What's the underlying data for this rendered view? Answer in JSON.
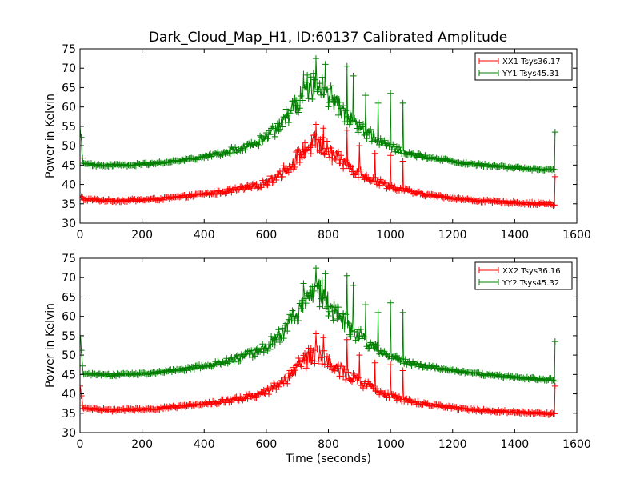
{
  "figure": {
    "title": "Dark_Cloud_Map_H1, ID:60137 Calibrated Amplitude"
  },
  "chart_data": [
    {
      "type": "line",
      "title": "Dark_Cloud_Map_H1, ID:60137 Calibrated Amplitude",
      "xlabel": "",
      "ylabel": "Power in Kelvin",
      "xlim": [
        0,
        1600
      ],
      "ylim": [
        30,
        75
      ],
      "xticks": [
        0,
        200,
        400,
        600,
        800,
        1000,
        1200,
        1400,
        1600
      ],
      "yticks": [
        30,
        35,
        40,
        45,
        50,
        55,
        60,
        65,
        70,
        75
      ],
      "xtick_labels": [
        "0",
        "200",
        "400",
        "600",
        "800",
        "1000",
        "1200",
        "1400",
        "1600"
      ],
      "ytick_labels": [
        "30",
        "35",
        "40",
        "45",
        "50",
        "55",
        "60",
        "65",
        "70",
        "75"
      ],
      "legend": "top-right",
      "marker": "+",
      "series": [
        {
          "name": "XX1 Tsys36.17",
          "color": "#ff0000",
          "x": [
            0,
            10,
            50,
            100,
            150,
            200,
            250,
            300,
            350,
            400,
            450,
            500,
            550,
            600,
            640,
            680,
            700,
            720,
            740,
            760,
            780,
            800,
            830,
            860,
            900,
            940,
            980,
            1020,
            1060,
            1100,
            1150,
            1200,
            1250,
            1300,
            1350,
            1400,
            1450,
            1500,
            1530
          ],
          "y": [
            37,
            36.2,
            36.0,
            35.8,
            35.9,
            36.0,
            36.2,
            36.6,
            37.0,
            37.5,
            38.0,
            38.6,
            39.3,
            40.5,
            42.5,
            45.0,
            47.0,
            48.5,
            50.0,
            50.5,
            50.0,
            48.5,
            46.5,
            45.0,
            43.0,
            41.5,
            40.0,
            39.0,
            38.2,
            37.5,
            37.0,
            36.5,
            36.0,
            35.7,
            35.5,
            35.3,
            35.1,
            35.0,
            34.8
          ],
          "spikes": [
            {
              "x": 760,
              "y": 55.5
            },
            {
              "x": 785,
              "y": 54.5
            },
            {
              "x": 860,
              "y": 54
            },
            {
              "x": 900,
              "y": 50
            },
            {
              "x": 950,
              "y": 48
            },
            {
              "x": 1000,
              "y": 47.5
            },
            {
              "x": 1040,
              "y": 46
            },
            {
              "x": 1530,
              "y": 42
            }
          ]
        },
        {
          "name": "YY1 Tsys45.31",
          "color": "#008000",
          "x": [
            0,
            10,
            50,
            100,
            150,
            200,
            250,
            300,
            350,
            400,
            450,
            500,
            550,
            600,
            640,
            680,
            700,
            720,
            740,
            760,
            780,
            800,
            830,
            860,
            900,
            940,
            980,
            1020,
            1060,
            1100,
            1150,
            1200,
            1250,
            1300,
            1350,
            1400,
            1450,
            1500,
            1530
          ],
          "y": [
            55,
            45.3,
            45.0,
            44.9,
            45.0,
            45.2,
            45.5,
            46.0,
            46.5,
            47.2,
            48.0,
            49.0,
            50.3,
            52.0,
            55.0,
            58.5,
            61.0,
            63.5,
            65.5,
            66.5,
            65.8,
            63.5,
            60.5,
            58.0,
            55.0,
            52.5,
            50.5,
            49.0,
            48.0,
            47.3,
            46.6,
            46.0,
            45.4,
            45.0,
            44.6,
            44.3,
            44.0,
            43.8,
            43.6
          ],
          "spikes": [
            {
              "x": 720,
              "y": 68.5
            },
            {
              "x": 760,
              "y": 72.5
            },
            {
              "x": 790,
              "y": 71
            },
            {
              "x": 860,
              "y": 70.5
            },
            {
              "x": 880,
              "y": 68
            },
            {
              "x": 920,
              "y": 63
            },
            {
              "x": 960,
              "y": 61
            },
            {
              "x": 1000,
              "y": 63.5
            },
            {
              "x": 1040,
              "y": 61
            },
            {
              "x": 1530,
              "y": 53.5
            }
          ]
        }
      ]
    },
    {
      "type": "line",
      "title": "",
      "xlabel": "Time (seconds)",
      "ylabel": "Power in Kelvin",
      "xlim": [
        0,
        1600
      ],
      "ylim": [
        30,
        75
      ],
      "xticks": [
        0,
        200,
        400,
        600,
        800,
        1000,
        1200,
        1400,
        1600
      ],
      "yticks": [
        30,
        35,
        40,
        45,
        50,
        55,
        60,
        65,
        70,
        75
      ],
      "xtick_labels": [
        "0",
        "200",
        "400",
        "600",
        "800",
        "1000",
        "1200",
        "1400",
        "1600"
      ],
      "ytick_labels": [
        "30",
        "35",
        "40",
        "45",
        "50",
        "55",
        "60",
        "65",
        "70",
        "75"
      ],
      "legend": "top-right",
      "marker": "+",
      "series": [
        {
          "name": "XX2 Tsys36.16",
          "color": "#ff0000",
          "x": [
            0,
            10,
            50,
            100,
            150,
            200,
            250,
            300,
            350,
            400,
            450,
            500,
            550,
            600,
            640,
            680,
            700,
            720,
            740,
            760,
            780,
            800,
            830,
            860,
            900,
            940,
            980,
            1020,
            1060,
            1100,
            1150,
            1200,
            1250,
            1300,
            1350,
            1400,
            1450,
            1500,
            1530
          ],
          "y": [
            42,
            36.2,
            36.0,
            35.8,
            35.9,
            36.0,
            36.2,
            36.6,
            37.0,
            37.5,
            38.0,
            38.6,
            39.3,
            40.5,
            42.5,
            45.0,
            47.0,
            48.5,
            50.0,
            50.5,
            50.0,
            48.5,
            46.5,
            45.0,
            43.0,
            41.5,
            40.0,
            39.0,
            38.2,
            37.5,
            37.0,
            36.5,
            36.0,
            35.7,
            35.5,
            35.3,
            35.1,
            35.0,
            34.8
          ],
          "spikes": [
            {
              "x": 760,
              "y": 55.5
            },
            {
              "x": 785,
              "y": 54.5
            },
            {
              "x": 860,
              "y": 54
            },
            {
              "x": 900,
              "y": 50
            },
            {
              "x": 950,
              "y": 48
            },
            {
              "x": 1000,
              "y": 47.5
            },
            {
              "x": 1040,
              "y": 46
            },
            {
              "x": 1530,
              "y": 42
            }
          ]
        },
        {
          "name": "YY2 Tsys45.32",
          "color": "#008000",
          "x": [
            0,
            10,
            50,
            100,
            150,
            200,
            250,
            300,
            350,
            400,
            450,
            500,
            550,
            600,
            640,
            680,
            700,
            720,
            740,
            760,
            780,
            800,
            830,
            860,
            900,
            940,
            980,
            1020,
            1060,
            1100,
            1150,
            1200,
            1250,
            1300,
            1350,
            1400,
            1450,
            1500,
            1530
          ],
          "y": [
            55,
            45.3,
            45.0,
            44.9,
            45.0,
            45.2,
            45.5,
            46.0,
            46.5,
            47.2,
            48.0,
            49.0,
            50.3,
            52.0,
            55.0,
            58.5,
            61.0,
            63.5,
            65.5,
            66.5,
            65.8,
            63.5,
            60.5,
            58.0,
            55.0,
            52.5,
            50.5,
            49.0,
            48.0,
            47.3,
            46.6,
            46.0,
            45.4,
            45.0,
            44.6,
            44.3,
            44.0,
            43.8,
            43.6
          ],
          "spikes": [
            {
              "x": 720,
              "y": 68.5
            },
            {
              "x": 760,
              "y": 72.5
            },
            {
              "x": 790,
              "y": 71
            },
            {
              "x": 860,
              "y": 70.5
            },
            {
              "x": 880,
              "y": 68
            },
            {
              "x": 920,
              "y": 63
            },
            {
              "x": 960,
              "y": 61
            },
            {
              "x": 1000,
              "y": 63.5
            },
            {
              "x": 1040,
              "y": 61
            },
            {
              "x": 1530,
              "y": 53.5
            }
          ]
        }
      ]
    }
  ]
}
